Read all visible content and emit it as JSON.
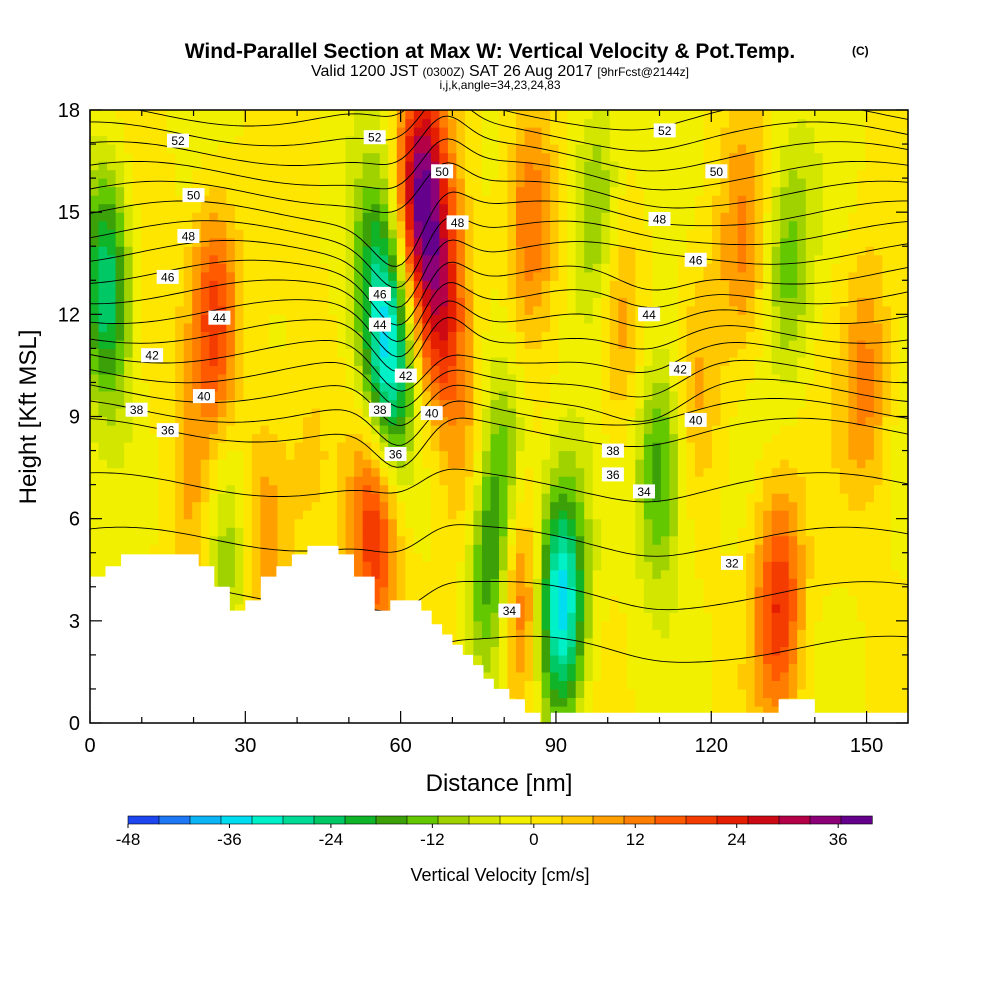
{
  "chart_data": {
    "type": "heatmap",
    "title": "Wind-Parallel Section at Max W: Vertical Velocity & Pot.Temp.",
    "title_mark": "(C)",
    "subtitle_parts": [
      "Valid 1200 JST",
      "(0300Z)",
      "SAT 26 Aug 2017",
      "[9hrFcst@2144z]"
    ],
    "subtitle2": "i,j,k,angle=34,23,24,83",
    "xlabel": "Distance [nm]",
    "ylabel": "Height [Kft MSL]",
    "xlim": [
      0,
      158
    ],
    "ylim": [
      0,
      18
    ],
    "xticks": [
      0,
      30,
      60,
      90,
      120,
      150
    ],
    "yticks": [
      0,
      3,
      6,
      9,
      12,
      15,
      18
    ],
    "colorbar": {
      "label": "Vertical Velocity [cm/s]",
      "range": [
        -48,
        40
      ],
      "step": 4,
      "ticks": [
        -48,
        -36,
        -24,
        -12,
        0,
        12,
        24,
        36
      ],
      "colors": [
        "#0a14e6",
        "#1e46f0",
        "#1e78f5",
        "#0ab4f5",
        "#00dcf0",
        "#00f0c8",
        "#00dc96",
        "#00c864",
        "#10b428",
        "#3ca008",
        "#64c800",
        "#a0d200",
        "#d2e600",
        "#f0f000",
        "#ffe600",
        "#ffc800",
        "#ffa000",
        "#ff7d00",
        "#ff5a00",
        "#f53c00",
        "#e61e00",
        "#cd0a14",
        "#b40046",
        "#8c0078",
        "#64008c"
      ]
    },
    "potential_temperature_contours": {
      "units": "C",
      "levels": [
        32,
        33,
        34,
        35,
        36,
        37,
        38,
        39,
        40,
        41,
        42,
        43,
        44,
        45,
        46,
        47,
        48,
        49,
        50,
        51,
        52,
        53,
        54
      ],
      "labels": [
        {
          "text": "52",
          "x": 17,
          "y": 17.1
        },
        {
          "text": "52",
          "x": 55,
          "y": 17.2
        },
        {
          "text": "52",
          "x": 111,
          "y": 17.4
        },
        {
          "text": "50",
          "x": 20,
          "y": 15.5
        },
        {
          "text": "50",
          "x": 68,
          "y": 16.2
        },
        {
          "text": "50",
          "x": 121,
          "y": 16.2
        },
        {
          "text": "48",
          "x": 19,
          "y": 14.3
        },
        {
          "text": "48",
          "x": 71,
          "y": 14.7
        },
        {
          "text": "48",
          "x": 110,
          "y": 14.8
        },
        {
          "text": "46",
          "x": 15,
          "y": 13.1
        },
        {
          "text": "46",
          "x": 56,
          "y": 12.6
        },
        {
          "text": "46",
          "x": 117,
          "y": 13.6
        },
        {
          "text": "44",
          "x": 25,
          "y": 11.9
        },
        {
          "text": "44",
          "x": 56,
          "y": 11.7
        },
        {
          "text": "44",
          "x": 108,
          "y": 12.0
        },
        {
          "text": "42",
          "x": 12,
          "y": 10.8
        },
        {
          "text": "42",
          "x": 61,
          "y": 10.2
        },
        {
          "text": "42",
          "x": 114,
          "y": 10.4
        },
        {
          "text": "40",
          "x": 22,
          "y": 9.6
        },
        {
          "text": "40",
          "x": 66,
          "y": 9.1
        },
        {
          "text": "40",
          "x": 117,
          "y": 8.9
        },
        {
          "text": "38",
          "x": 9,
          "y": 9.2
        },
        {
          "text": "38",
          "x": 56,
          "y": 9.2
        },
        {
          "text": "38",
          "x": 101,
          "y": 8.0
        },
        {
          "text": "36",
          "x": 15,
          "y": 8.6
        },
        {
          "text": "36",
          "x": 59,
          "y": 7.9
        },
        {
          "text": "36",
          "x": 101,
          "y": 7.3
        },
        {
          "text": "34",
          "x": 107,
          "y": 6.8
        },
        {
          "text": "34",
          "x": 81,
          "y": 3.3
        },
        {
          "text": "32",
          "x": 124,
          "y": 4.7
        }
      ]
    },
    "vertical_velocity_features": [
      {
        "x": 3,
        "y": 13,
        "w": -28
      },
      {
        "x": 12,
        "y": 12,
        "w": 4
      },
      {
        "x": 20,
        "y": 6,
        "w": 8
      },
      {
        "x": 24,
        "y": 12,
        "w": 22
      },
      {
        "x": 26,
        "y": 5.5,
        "w": -12
      },
      {
        "x": 34,
        "y": 6,
        "w": 12
      },
      {
        "x": 42,
        "y": 8,
        "w": 6
      },
      {
        "x": 55,
        "y": 13,
        "w": -18
      },
      {
        "x": 58,
        "y": 10.5,
        "w": -32
      },
      {
        "x": 55,
        "y": 5.5,
        "w": 24
      },
      {
        "x": 64,
        "y": 15.5,
        "w": 38
      },
      {
        "x": 68,
        "y": 12,
        "w": 26
      },
      {
        "x": 73,
        "y": 7.5,
        "w": 12
      },
      {
        "x": 77,
        "y": 4.7,
        "w": -22
      },
      {
        "x": 80,
        "y": 8,
        "w": -14
      },
      {
        "x": 83,
        "y": 3.5,
        "w": 20
      },
      {
        "x": 85,
        "y": 15,
        "w": 18
      },
      {
        "x": 91,
        "y": 3.5,
        "w": -40
      },
      {
        "x": 98,
        "y": 15,
        "w": -16
      },
      {
        "x": 102,
        "y": 12,
        "w": 12
      },
      {
        "x": 110,
        "y": 7.5,
        "w": -20
      },
      {
        "x": 118,
        "y": 10,
        "w": 8
      },
      {
        "x": 126,
        "y": 14,
        "w": 12
      },
      {
        "x": 133,
        "y": 3.5,
        "w": 24
      },
      {
        "x": 135,
        "y": 13.5,
        "w": -14
      },
      {
        "x": 150,
        "y": 10,
        "w": 14
      }
    ],
    "terrain_profile": [
      {
        "x": 0,
        "y": 4.3
      },
      {
        "x": 3,
        "y": 4.3
      },
      {
        "x": 3,
        "y": 4.6
      },
      {
        "x": 6,
        "y": 4.6
      },
      {
        "x": 6,
        "y": 4.95
      },
      {
        "x": 21,
        "y": 4.95
      },
      {
        "x": 21,
        "y": 4.6
      },
      {
        "x": 24,
        "y": 4.6
      },
      {
        "x": 24,
        "y": 4.0
      },
      {
        "x": 27,
        "y": 4.0
      },
      {
        "x": 27,
        "y": 3.3
      },
      {
        "x": 30,
        "y": 3.3
      },
      {
        "x": 30,
        "y": 3.6
      },
      {
        "x": 33,
        "y": 3.6
      },
      {
        "x": 33,
        "y": 4.3
      },
      {
        "x": 36,
        "y": 4.3
      },
      {
        "x": 36,
        "y": 4.6
      },
      {
        "x": 39,
        "y": 4.6
      },
      {
        "x": 39,
        "y": 4.95
      },
      {
        "x": 42,
        "y": 4.95
      },
      {
        "x": 42,
        "y": 5.2
      },
      {
        "x": 48,
        "y": 5.2
      },
      {
        "x": 48,
        "y": 4.95
      },
      {
        "x": 51,
        "y": 4.95
      },
      {
        "x": 51,
        "y": 4.3
      },
      {
        "x": 55,
        "y": 4.3
      },
      {
        "x": 55,
        "y": 3.3
      },
      {
        "x": 58,
        "y": 3.3
      },
      {
        "x": 58,
        "y": 3.6
      },
      {
        "x": 64,
        "y": 3.6
      },
      {
        "x": 64,
        "y": 3.3
      },
      {
        "x": 66,
        "y": 3.3
      },
      {
        "x": 66,
        "y": 2.9
      },
      {
        "x": 68,
        "y": 2.9
      },
      {
        "x": 68,
        "y": 2.6
      },
      {
        "x": 70,
        "y": 2.6
      },
      {
        "x": 70,
        "y": 2.3
      },
      {
        "x": 72,
        "y": 2.3
      },
      {
        "x": 72,
        "y": 2.0
      },
      {
        "x": 74,
        "y": 2.0
      },
      {
        "x": 74,
        "y": 1.7
      },
      {
        "x": 76,
        "y": 1.7
      },
      {
        "x": 76,
        "y": 1.3
      },
      {
        "x": 78,
        "y": 1.3
      },
      {
        "x": 78,
        "y": 1.0
      },
      {
        "x": 81,
        "y": 1.0
      },
      {
        "x": 81,
        "y": 0.7
      },
      {
        "x": 84,
        "y": 0.7
      },
      {
        "x": 84,
        "y": 0.3
      },
      {
        "x": 87,
        "y": 0.3
      },
      {
        "x": 87,
        "y": 0.0
      },
      {
        "x": 89,
        "y": 0.0
      },
      {
        "x": 89,
        "y": 0.3
      },
      {
        "x": 133,
        "y": 0.3
      },
      {
        "x": 133,
        "y": 0.7
      },
      {
        "x": 140,
        "y": 0.7
      },
      {
        "x": 140,
        "y": 0.3
      },
      {
        "x": 158,
        "y": 0.3
      }
    ]
  }
}
